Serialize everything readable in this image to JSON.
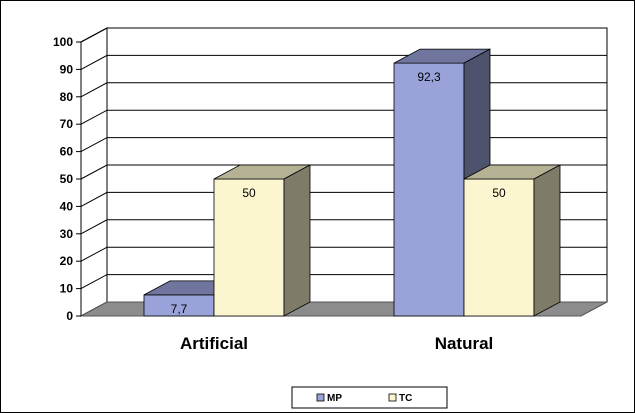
{
  "chart_data": {
    "type": "bar",
    "style": "3d-clustered-column",
    "title": "",
    "xlabel": "",
    "ylabel": "",
    "categories": [
      "Artificial",
      "Natural"
    ],
    "series": [
      {
        "name": "MP",
        "values": [
          7.7,
          92.3
        ],
        "labels": [
          "7,7",
          "92,3"
        ],
        "color": "#9aa3d9"
      },
      {
        "name": "TC",
        "values": [
          50,
          50
        ],
        "labels": [
          "50",
          "50"
        ],
        "color": "#fbf6cf"
      }
    ],
    "ylim": [
      0,
      100
    ],
    "yticks": [
      "0",
      "10",
      "20",
      "30",
      "40",
      "50",
      "60",
      "70",
      "80",
      "90",
      "100"
    ],
    "grid": true,
    "legend_position": "bottom"
  }
}
